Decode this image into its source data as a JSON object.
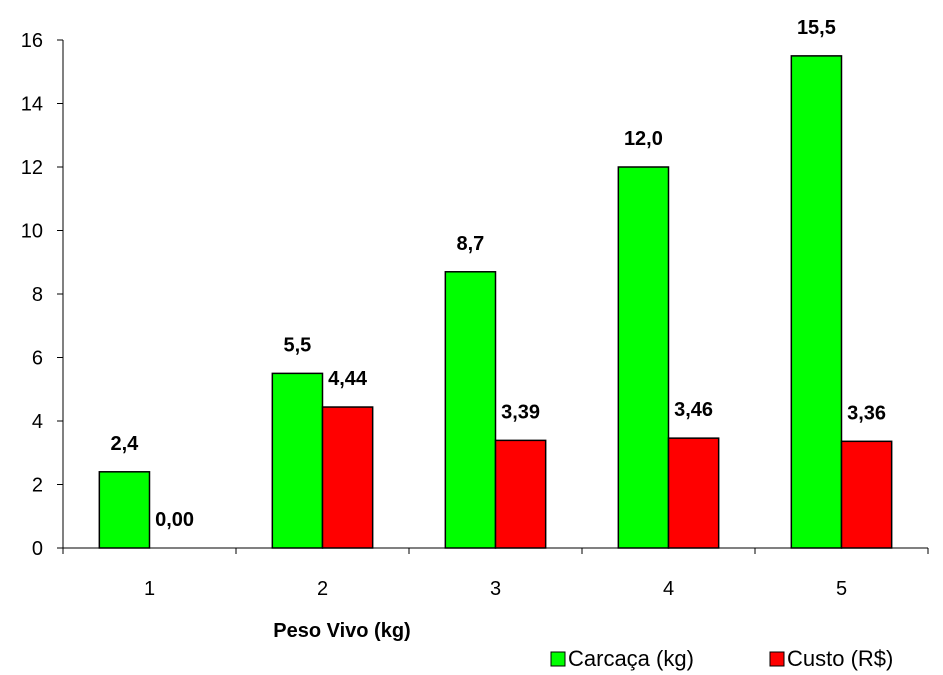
{
  "chart_data": {
    "type": "bar",
    "title": "",
    "xlabel": "Peso Vivo (kg)",
    "ylabel": "",
    "categories": [
      "1",
      "2",
      "3",
      "4",
      "5"
    ],
    "ylim": [
      0,
      16
    ],
    "yticks": [
      "0",
      "2",
      "4",
      "6",
      "8",
      "10",
      "12",
      "14",
      "16"
    ],
    "grid": false,
    "legend_position": "bottom-right",
    "series": [
      {
        "name": "Carcaça (kg)",
        "color": "#00ff00",
        "values": [
          2.4,
          5.5,
          8.7,
          12.0,
          15.5
        ],
        "labels": [
          "2,4",
          "5,5",
          "8,7",
          "12,0",
          "15,5"
        ]
      },
      {
        "name": "Custo (R$)",
        "color": "#ff0000",
        "values": [
          0.0,
          4.44,
          3.39,
          3.46,
          3.36
        ],
        "labels": [
          "0,00",
          "4,44",
          "3,39",
          "3,46",
          "3,36"
        ]
      }
    ]
  }
}
